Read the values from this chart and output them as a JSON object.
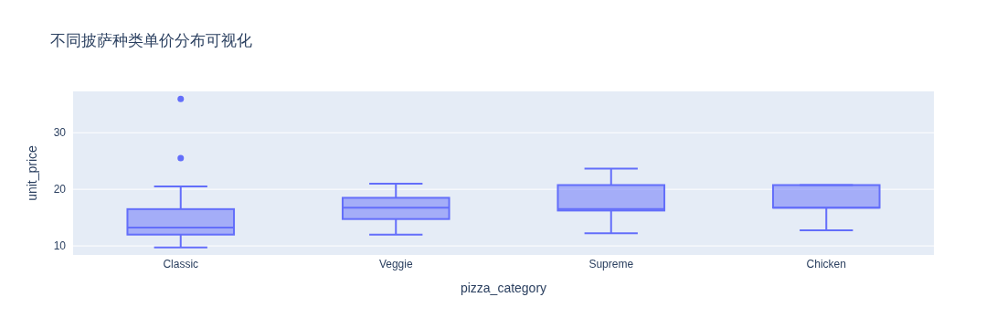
{
  "chart_data": {
    "type": "box",
    "title": "不同披萨种类单价分布可视化",
    "xlabel": "pizza_category",
    "ylabel": "unit_price",
    "categories": [
      "Classic",
      "Veggie",
      "Supreme",
      "Chicken"
    ],
    "boxes": [
      {
        "low": 9.75,
        "q1": 12,
        "median": 13.25,
        "q3": 16.5,
        "high": 20.5,
        "outliers": [
          25.5,
          35.95
        ]
      },
      {
        "low": 12,
        "q1": 14.75,
        "median": 16.75,
        "q3": 18.5,
        "high": 21
      },
      {
        "low": 12.25,
        "q1": 16.25,
        "median": 16.5,
        "q3": 20.75,
        "high": 23.65
      },
      {
        "low": 12.75,
        "q1": 16.75,
        "median": 16.75,
        "q3": 20.75,
        "high": 20.75
      }
    ],
    "color": "#636efa",
    "ylim": [
      8.4,
      37.3
    ],
    "yticks": [
      10,
      20,
      30
    ],
    "grid": "y"
  }
}
